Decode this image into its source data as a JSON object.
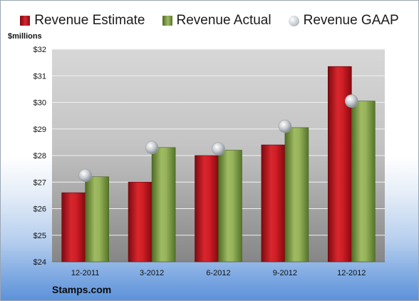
{
  "legend": {
    "estimate_label": "Revenue Estimate",
    "actual_label": "Revenue Actual",
    "gaap_label": "Revenue GAAP"
  },
  "brand": "Stamps.com",
  "colors": {
    "estimate": "#c81d25",
    "actual": "#8aab4e",
    "gaap": "#c9cdd3"
  },
  "chart_data": {
    "type": "bar",
    "ylabel": "$millions",
    "ylim": [
      24,
      32
    ],
    "yticks": [
      "$24",
      "$25",
      "$26",
      "$27",
      "$28",
      "$29",
      "$30",
      "$31",
      "$32"
    ],
    "categories": [
      "12-2011",
      "3-2012",
      "6-2012",
      "9-2012",
      "12-2012"
    ],
    "series": [
      {
        "name": "Revenue Estimate",
        "kind": "bar",
        "values": [
          26.6,
          27.0,
          28.0,
          28.4,
          31.35
        ]
      },
      {
        "name": "Revenue Actual",
        "kind": "bar",
        "values": [
          27.2,
          28.3,
          28.2,
          29.05,
          30.05
        ]
      },
      {
        "name": "Revenue GAAP",
        "kind": "marker",
        "values": [
          27.25,
          28.3,
          28.25,
          29.1,
          30.05
        ]
      }
    ],
    "grid": true,
    "legend_position": "top"
  }
}
